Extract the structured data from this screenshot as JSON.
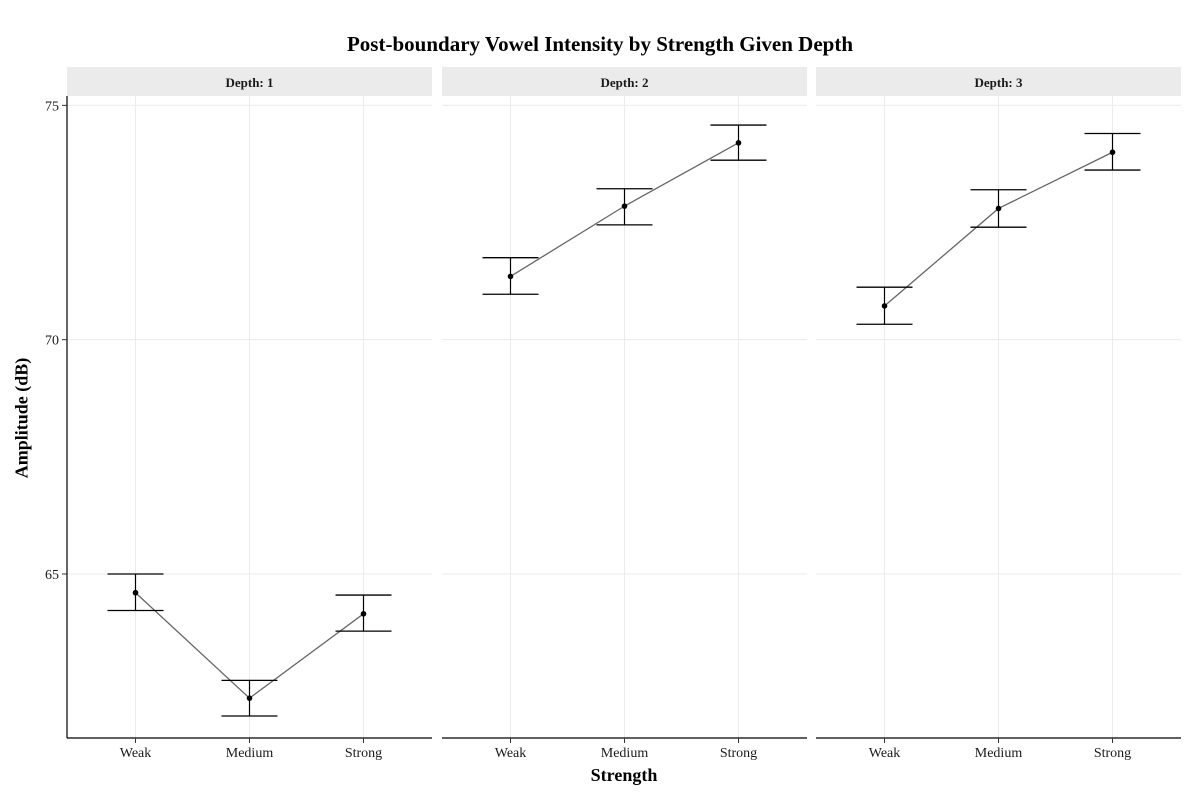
{
  "chart_data": {
    "type": "line",
    "title": "Post-boundary Vowel Intensity by Strength Given Depth",
    "xlabel": "Strength",
    "ylabel": "Amplitude (dB)",
    "categories": [
      "Weak",
      "Medium",
      "Strong"
    ],
    "yticks": [
      65,
      70,
      75
    ],
    "ylim": [
      61.5,
      75.2
    ],
    "grid": true,
    "legend": "none",
    "facet_label_prefix": "Depth: ",
    "panels": [
      {
        "strip": "Depth: 1",
        "points": [
          {
            "x": "Weak",
            "y": 64.6,
            "ymin": 64.22,
            "ymax": 65.0
          },
          {
            "x": "Medium",
            "y": 62.35,
            "ymin": 61.97,
            "ymax": 62.73
          },
          {
            "x": "Strong",
            "y": 64.15,
            "ymin": 63.78,
            "ymax": 64.55
          }
        ]
      },
      {
        "strip": "Depth: 2",
        "points": [
          {
            "x": "Weak",
            "y": 71.35,
            "ymin": 70.97,
            "ymax": 71.75
          },
          {
            "x": "Medium",
            "y": 72.85,
            "ymin": 72.45,
            "ymax": 73.22
          },
          {
            "x": "Strong",
            "y": 74.2,
            "ymin": 73.83,
            "ymax": 74.58
          }
        ]
      },
      {
        "strip": "Depth: 3",
        "points": [
          {
            "x": "Weak",
            "y": 70.72,
            "ymin": 70.33,
            "ymax": 71.12
          },
          {
            "x": "Medium",
            "y": 72.8,
            "ymin": 72.4,
            "ymax": 73.2
          },
          {
            "x": "Strong",
            "y": 74.0,
            "ymin": 73.62,
            "ymax": 74.4
          }
        ]
      }
    ]
  }
}
